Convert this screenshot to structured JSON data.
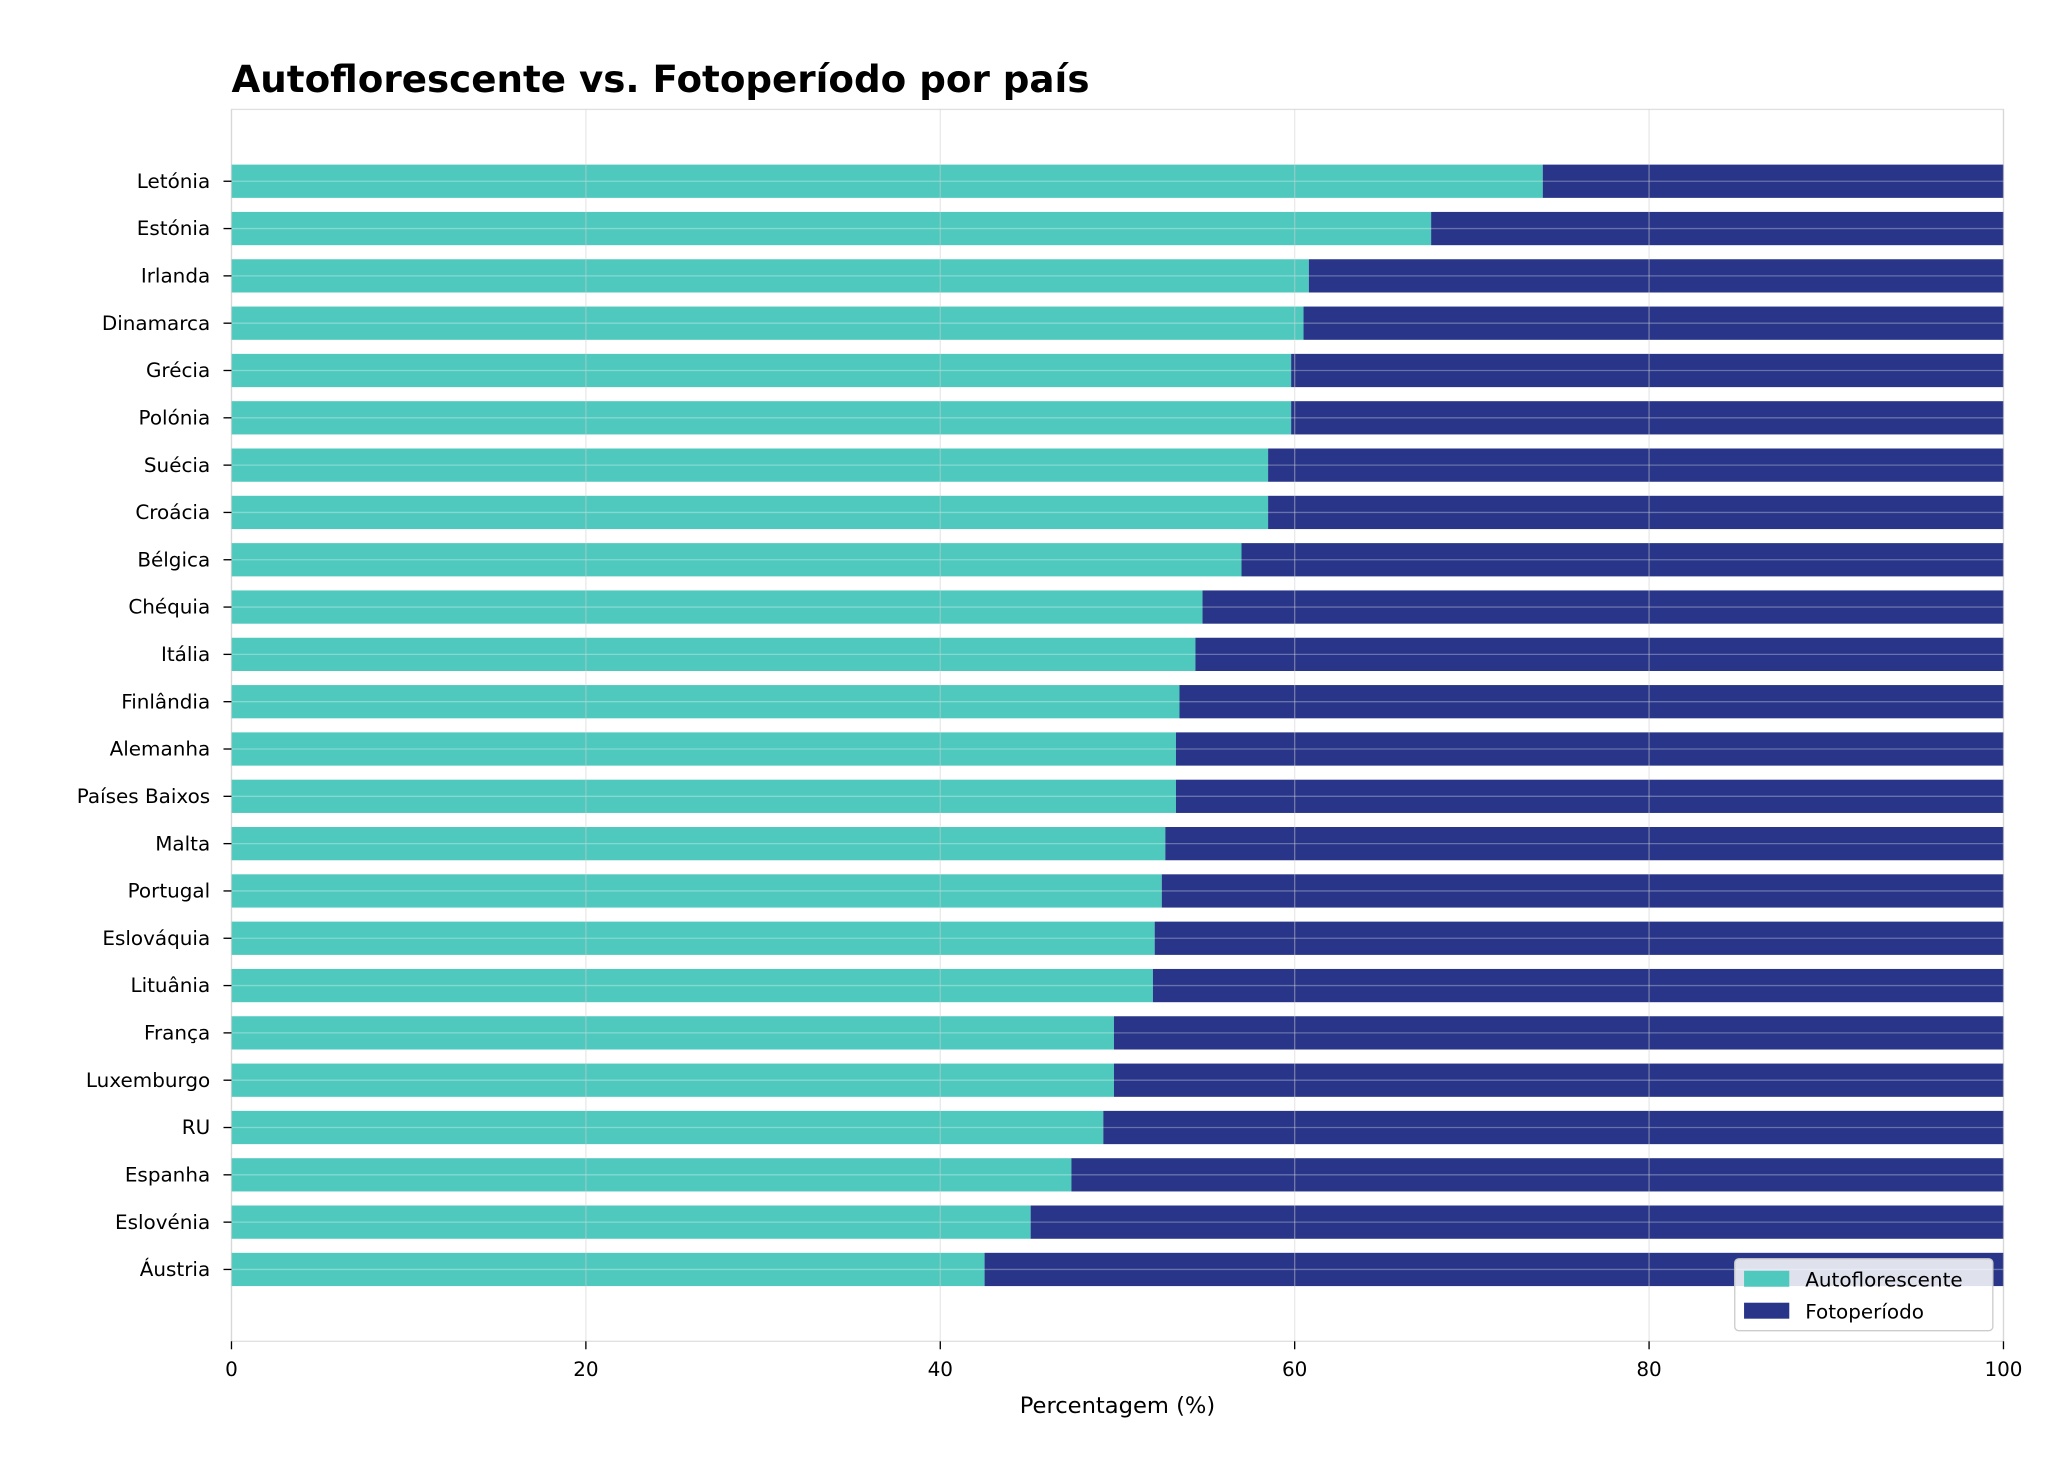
{
  "chart_data": {
    "type": "bar",
    "orientation": "horizontal",
    "stacked": true,
    "title": "Autoflorescente vs. Fotoperíodo por país",
    "xlabel": "Percentagem (%)",
    "ylabel": "",
    "xlim": [
      0,
      100
    ],
    "xticks": [
      0,
      20,
      40,
      60,
      80,
      100
    ],
    "grid": true,
    "legend_position": "bottom-right",
    "categories": [
      "Letónia",
      "Estónia",
      "Irlanda",
      "Dinamarca",
      "Grécia",
      "Polónia",
      "Suécia",
      "Croácia",
      "Bélgica",
      "Chéquia",
      "Itália",
      "Finlândia",
      "Alemanha",
      "Países Baixos",
      "Malta",
      "Portugal",
      "Eslováquia",
      "Lituânia",
      "França",
      "Luxemburgo",
      "RU",
      "Espanha",
      "Eslovénia",
      "Áustria"
    ],
    "series": [
      {
        "name": "Autoflorescente",
        "color": "#4fc9be",
        "values": [
          74.0,
          67.7,
          60.8,
          60.5,
          59.8,
          59.8,
          58.5,
          58.5,
          57.0,
          54.8,
          54.4,
          53.5,
          53.3,
          53.3,
          52.7,
          52.5,
          52.1,
          52.0,
          49.8,
          49.8,
          49.2,
          47.4,
          45.1,
          42.5
        ]
      },
      {
        "name": "Fotoperíodo",
        "color": "#283588",
        "values": [
          26.0,
          32.3,
          39.2,
          39.5,
          40.2,
          40.2,
          41.5,
          41.5,
          43.0,
          45.2,
          45.6,
          46.5,
          46.7,
          46.7,
          47.3,
          47.5,
          47.9,
          48.0,
          50.2,
          50.2,
          50.8,
          52.6,
          54.9,
          57.5
        ]
      }
    ]
  }
}
